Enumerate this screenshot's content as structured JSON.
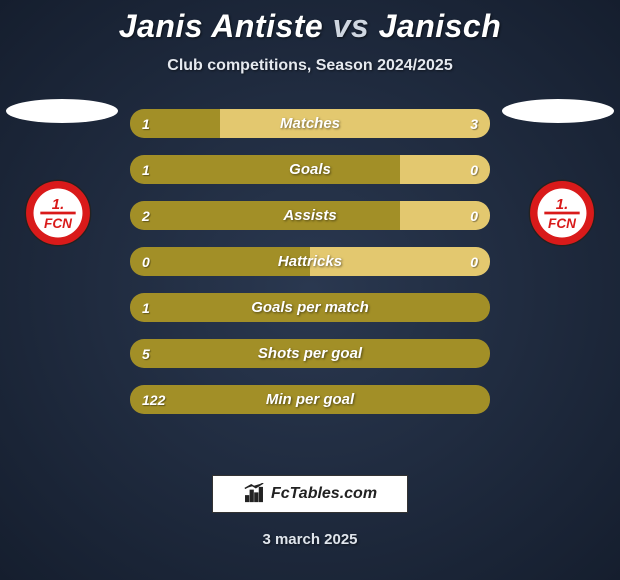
{
  "title": {
    "player1": "Janis Antiste",
    "vs": "vs",
    "player2": "Janisch"
  },
  "subtitle": "Club competitions, Season 2024/2025",
  "date": "3 march 2025",
  "footer_brand": "FcTables.com",
  "colors": {
    "bar_left": "#a28f27",
    "bar_right": "#e3c86f",
    "background_center": "#2a3850",
    "background_edge": "#151e2e",
    "badge_red": "#d91a1a",
    "badge_white": "#ffffff"
  },
  "club_badge": {
    "top_text": "1.",
    "middle_text": "FCN"
  },
  "stats": [
    {
      "label": "Matches",
      "left_val": "1",
      "right_val": "3",
      "left_pct": 25,
      "right_pct": 75
    },
    {
      "label": "Goals",
      "left_val": "1",
      "right_val": "0",
      "left_pct": 75,
      "right_pct": 25
    },
    {
      "label": "Assists",
      "left_val": "2",
      "right_val": "0",
      "left_pct": 75,
      "right_pct": 25
    },
    {
      "label": "Hattricks",
      "left_val": "0",
      "right_val": "0",
      "left_pct": 50,
      "right_pct": 50
    },
    {
      "label": "Goals per match",
      "left_val": "1",
      "right_val": "",
      "left_pct": 100,
      "right_pct": 0
    },
    {
      "label": "Shots per goal",
      "left_val": "5",
      "right_val": "",
      "left_pct": 100,
      "right_pct": 0
    },
    {
      "label": "Min per goal",
      "left_val": "122",
      "right_val": "",
      "left_pct": 100,
      "right_pct": 0
    }
  ]
}
